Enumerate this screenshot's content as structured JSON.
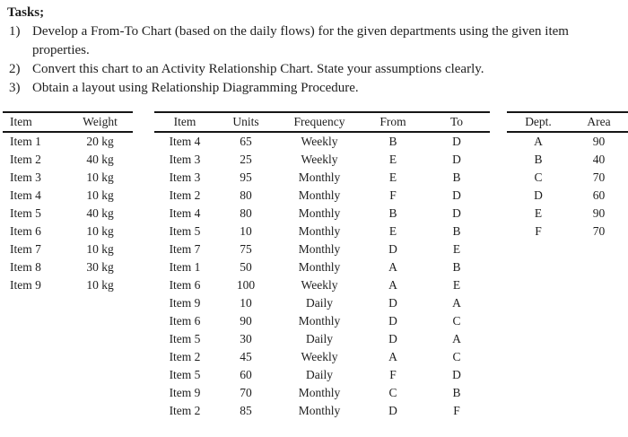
{
  "page": {
    "background": "#ffffff",
    "text_color": "#1e1e1e",
    "rule_color": "#161616"
  },
  "tasks": {
    "heading": "Tasks;",
    "items": [
      {
        "number": "1)",
        "text": "Develop a From-To Chart (based on the daily flows) for the given departments using the given item properties."
      },
      {
        "number": "2)",
        "text": "Convert this chart to an Activity Relationship Chart. State your assumptions clearly."
      },
      {
        "number": "3)",
        "text": "Obtain a layout using Relationship Diagramming Procedure."
      }
    ]
  },
  "tables": {
    "weights": {
      "headers": [
        "Item",
        "Weight"
      ],
      "rows": [
        [
          "Item 1",
          "20 kg"
        ],
        [
          "Item 2",
          "40 kg"
        ],
        [
          "Item 3",
          "10 kg"
        ],
        [
          "Item 4",
          "10 kg"
        ],
        [
          "Item 5",
          "40 kg"
        ],
        [
          "Item 6",
          "10 kg"
        ],
        [
          "Item 7",
          "10 kg"
        ],
        [
          "Item 8",
          "30 kg"
        ],
        [
          "Item 9",
          "10 kg"
        ]
      ]
    },
    "flows": {
      "headers": [
        "Item",
        "Units",
        "Frequency",
        "From",
        "To"
      ],
      "rows": [
        [
          "Item 4",
          "65",
          "Weekly",
          "B",
          "D"
        ],
        [
          "Item 3",
          "25",
          "Weekly",
          "E",
          "D"
        ],
        [
          "Item 3",
          "95",
          "Monthly",
          "E",
          "B"
        ],
        [
          "Item 2",
          "80",
          "Monthly",
          "F",
          "D"
        ],
        [
          "Item 4",
          "80",
          "Monthly",
          "B",
          "D"
        ],
        [
          "Item 5",
          "10",
          "Monthly",
          "E",
          "B"
        ],
        [
          "Item 7",
          "75",
          "Monthly",
          "D",
          "E"
        ],
        [
          "Item 1",
          "50",
          "Monthly",
          "A",
          "B"
        ],
        [
          "Item 6",
          "100",
          "Weekly",
          "A",
          "E"
        ],
        [
          "Item 9",
          "10",
          "Daily",
          "D",
          "A"
        ],
        [
          "Item 6",
          "90",
          "Monthly",
          "D",
          "C"
        ],
        [
          "Item 5",
          "30",
          "Daily",
          "D",
          "A"
        ],
        [
          "Item 2",
          "45",
          "Weekly",
          "A",
          "C"
        ],
        [
          "Item 5",
          "60",
          "Daily",
          "F",
          "D"
        ],
        [
          "Item 9",
          "70",
          "Monthly",
          "C",
          "B"
        ],
        [
          "Item 2",
          "85",
          "Monthly",
          "D",
          "F"
        ]
      ]
    },
    "departments": {
      "headers": [
        "Dept.",
        "Area"
      ],
      "rows": [
        [
          "A",
          "90"
        ],
        [
          "B",
          "40"
        ],
        [
          "C",
          "70"
        ],
        [
          "D",
          "60"
        ],
        [
          "E",
          "90"
        ],
        [
          "F",
          "70"
        ]
      ]
    }
  }
}
